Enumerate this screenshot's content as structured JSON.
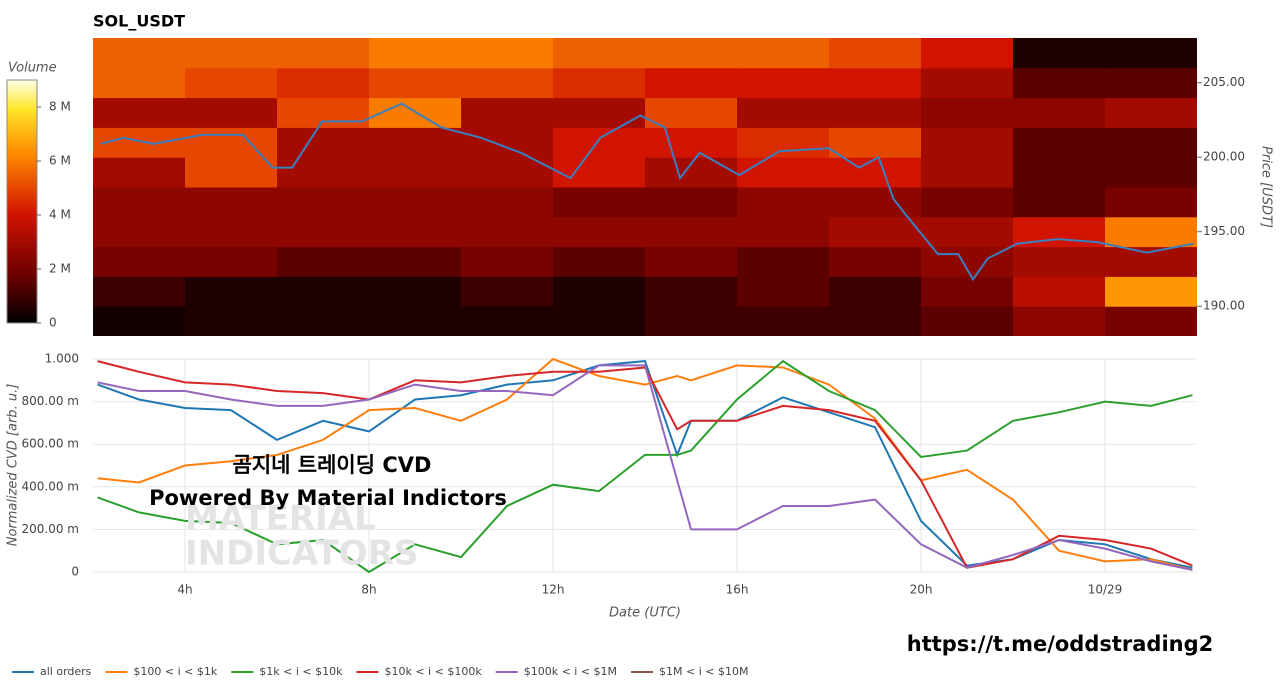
{
  "chart_data": [
    {
      "type": "heatmap",
      "title": "SOL_USDT",
      "ylabel": "Price [USDT]",
      "xlim": [
        2,
        26
      ],
      "ylim": [
        188,
        208
      ],
      "yticks": [
        {
          "value": 190,
          "label": "190.00"
        },
        {
          "value": 195,
          "label": "195.00"
        },
        {
          "value": 200,
          "label": "200.00"
        },
        {
          "value": 205,
          "label": "205.00"
        }
      ],
      "x_bins": [
        2,
        4,
        6,
        8,
        10,
        12,
        14,
        16,
        18,
        20,
        22,
        24,
        26
      ],
      "y_bins": [
        188,
        190,
        192,
        194,
        196,
        198,
        200,
        202,
        204,
        206,
        208
      ],
      "z": [
        [
          300000,
          500000,
          500000,
          500000,
          500000,
          500000,
          1000000,
          1000000,
          1000000,
          1500000,
          2500000,
          2000000
        ],
        [
          1000000,
          500000,
          500000,
          500000,
          1000000,
          500000,
          1000000,
          1500000,
          1000000,
          2000000,
          3500000,
          6500000
        ],
        [
          2000000,
          2000000,
          1500000,
          1500000,
          2000000,
          1500000,
          2000000,
          1500000,
          2000000,
          2500000,
          3000000,
          3000000
        ],
        [
          2500000,
          2500000,
          2500000,
          2500000,
          2500000,
          2500000,
          2500000,
          2500000,
          3000000,
          3000000,
          4000000,
          6000000
        ],
        [
          2500000,
          2500000,
          2500000,
          2500000,
          2500000,
          2000000,
          2000000,
          2500000,
          2500000,
          2000000,
          1500000,
          2000000
        ],
        [
          3000000,
          5000000,
          3000000,
          3000000,
          3000000,
          4000000,
          3000000,
          4000000,
          4000000,
          3000000,
          1500000,
          1500000
        ],
        [
          5000000,
          5000000,
          3000000,
          3000000,
          3000000,
          4000000,
          4000000,
          4500000,
          5000000,
          3000000,
          1500000,
          1500000
        ],
        [
          3000000,
          3000000,
          5000000,
          6000000,
          3000000,
          3000000,
          5000000,
          3000000,
          3000000,
          2500000,
          2500000,
          3000000
        ],
        [
          5500000,
          5000000,
          4500000,
          5000000,
          5000000,
          4500000,
          4000000,
          4000000,
          4000000,
          3000000,
          1500000,
          1500000
        ],
        [
          5500000,
          5500000,
          5500000,
          6000000,
          6000000,
          5500000,
          5500000,
          5500000,
          5000000,
          4000000,
          500000,
          500000
        ]
      ],
      "colorbar": {
        "label": "Volume",
        "lim": [
          0,
          9000000
        ],
        "ticks": [
          0,
          {
            "value": 2000000,
            "label": "2 M"
          },
          {
            "value": 4000000,
            "label": "4 M"
          },
          {
            "value": 6000000,
            "label": "6 M"
          },
          {
            "value": 8000000,
            "label": "8 M"
          }
        ]
      },
      "line": {
        "color": "#3a7fc0",
        "x": [
          2.17,
          2.66,
          3.31,
          4.39,
          5.26,
          5.9,
          6.33,
          6.98,
          7.85,
          8.71,
          9.57,
          10.44,
          11.3,
          12.38,
          13.03,
          13.9,
          14.43,
          14.76,
          15.19,
          16.05,
          16.92,
          18.0,
          18.65,
          19.08,
          19.4,
          19.73,
          20.37,
          20.81,
          21.13,
          21.45,
          22.1,
          22.97,
          23.83,
          24.91,
          25.93
        ],
        "values": [
          200.9,
          201.3,
          200.9,
          201.5,
          201.5,
          199.3,
          199.3,
          202.4,
          202.4,
          203.6,
          202.0,
          201.3,
          200.3,
          198.6,
          201.3,
          202.8,
          202.0,
          198.6,
          200.3,
          198.8,
          200.4,
          200.6,
          199.3,
          200.0,
          197.2,
          195.9,
          193.5,
          193.5,
          191.8,
          193.2,
          194.2,
          194.5,
          194.3,
          193.6,
          194.2
        ]
      }
    },
    {
      "type": "line",
      "xlabel": "Date (UTC)",
      "ylabel": "Normalized CVD [arb. u.]",
      "grid": true,
      "xlim": [
        2,
        26
      ],
      "ylim": [
        0,
        1
      ],
      "xticks": [
        {
          "value": 4,
          "label": "4h"
        },
        {
          "value": 8,
          "label": "8h"
        },
        {
          "value": 12,
          "label": "12h"
        },
        {
          "value": 16,
          "label": "16h"
        },
        {
          "value": 20,
          "label": "20h"
        },
        {
          "value": 24,
          "label": "10/29"
        }
      ],
      "yticks": [
        0,
        {
          "value": 0.2,
          "label": "200.00 m"
        },
        {
          "value": 0.4,
          "label": "400.00 m"
        },
        {
          "value": 0.6,
          "label": "600.00 m"
        },
        {
          "value": 0.8,
          "label": "800.00 m"
        },
        {
          "value": 1,
          "label": "1.000"
        }
      ],
      "x": [
        2.1,
        3,
        4,
        5,
        6,
        7,
        8,
        9,
        10,
        11,
        12,
        13,
        14,
        14.7,
        15,
        16,
        17,
        18,
        19,
        20,
        21,
        22,
        23,
        24,
        25,
        25.9
      ],
      "series": [
        {
          "name": "all orders",
          "color": "#1f77b4",
          "values": [
            0.88,
            0.81,
            0.77,
            0.76,
            0.62,
            0.71,
            0.66,
            0.81,
            0.83,
            0.88,
            0.9,
            0.97,
            0.99,
            0.55,
            0.71,
            0.71,
            0.82,
            0.75,
            0.68,
            0.24,
            0.03,
            0.06,
            0.15,
            0.13,
            0.06,
            0.02
          ]
        },
        {
          "name": "$100 < i < $1k",
          "color": "#ff7f0e",
          "values": [
            0.44,
            0.42,
            0.5,
            0.52,
            0.55,
            0.62,
            0.76,
            0.77,
            0.71,
            0.81,
            1.0,
            0.92,
            0.88,
            0.92,
            0.9,
            0.97,
            0.96,
            0.88,
            0.72,
            0.43,
            0.48,
            0.34,
            0.1,
            0.05,
            0.06,
            0.01
          ]
        },
        {
          "name": "$1k < i < $10k",
          "color": "#2ca02c",
          "values": [
            0.35,
            0.28,
            0.24,
            0.23,
            0.13,
            0.15,
            0,
            0.13,
            0.07,
            0.31,
            0.41,
            0.38,
            0.55,
            0.55,
            0.57,
            0.81,
            0.99,
            0.85,
            0.76,
            0.54,
            0.57,
            0.71,
            0.75,
            0.8,
            0.78,
            0.83
          ]
        },
        {
          "name": "$10k < i < $100k",
          "color": "#d62728",
          "values": [
            0.99,
            0.94,
            0.89,
            0.88,
            0.85,
            0.84,
            0.81,
            0.9,
            0.89,
            0.92,
            0.94,
            0.94,
            0.96,
            0.67,
            0.71,
            0.71,
            0.78,
            0.76,
            0.71,
            0.43,
            0.02,
            0.06,
            0.17,
            0.15,
            0.11,
            0.03
          ]
        },
        {
          "name": "$100k < i < $1M",
          "color": "#9467bd",
          "values": [
            0.89,
            0.85,
            0.85,
            0.81,
            0.78,
            0.78,
            0.81,
            0.88,
            0.85,
            0.85,
            0.83,
            0.97,
            0.97,
            0.43,
            0.2,
            0.2,
            0.31,
            0.31,
            0.34,
            0.13,
            0.02,
            0.08,
            0.15,
            0.11,
            0.05,
            0.01
          ]
        },
        {
          "name": "$1M < i < $10M",
          "color": "#8c564b",
          "values": [
            null,
            null,
            null,
            null,
            null,
            null,
            null,
            null,
            null,
            null,
            null,
            null,
            null,
            null,
            null,
            null,
            null,
            null,
            null,
            null,
            null,
            null,
            null,
            null,
            null,
            null
          ]
        }
      ],
      "annotations": [
        "곰지네 트레이딩 CVD",
        "Powered By Material Indictors",
        "MATERIAL",
        "INDICATORS",
        "https://t.me/oddstrading2"
      ]
    }
  ]
}
